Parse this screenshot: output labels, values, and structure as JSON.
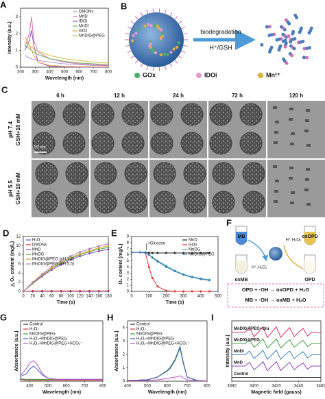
{
  "panel_b": {
    "label": "B",
    "arrow_top": "biodegradation",
    "arrow_bottom": "H⁺/GSH",
    "legend": [
      "GOx",
      "IDOi",
      "Mn²⁺"
    ]
  },
  "panel_c": {
    "label": "C",
    "columns": [
      "6 h",
      "12 h",
      "24 h",
      "72 h",
      "120 h"
    ],
    "rows": [
      [
        "pH 7.4",
        "GSH+10 mM"
      ],
      [
        "pH 5.5",
        "GSH+10 mM"
      ]
    ],
    "scale_bar": "50 nm"
  },
  "panel_f": {
    "label": "F",
    "tubes": [
      "MB",
      "oxOPD",
      "oxMB",
      "OPD"
    ],
    "conditions": [
      "H⁺,H₂O₂",
      "H⁺,H₂O₂"
    ],
    "reactions": [
      "OPD + ·OH → oxOPD + H₂O",
      "MB + ·OH → oxMB + H₂O"
    ]
  },
  "chart_data": [
    {
      "type": "line",
      "label": "A",
      "xlabel": "Wavelength (nm)",
      "ylabel": "Intensity (a.u.)",
      "legend": "upper right",
      "x": [
        230,
        260,
        275,
        290,
        320,
        400,
        500,
        600,
        700,
        800
      ],
      "xlim": [
        200,
        800
      ],
      "xticks": [
        200,
        300,
        400,
        500,
        600,
        700,
        800
      ],
      "ylim": [
        0,
        3.5
      ],
      "yticks": [
        0,
        1,
        2,
        3
      ],
      "series": [
        {
          "name": "DMONs",
          "color": "#a898d8",
          "values": [
            0.7,
            0.55,
            0.5,
            0.45,
            0.4,
            0.3,
            0.2,
            0.15,
            0.1,
            0.08
          ]
        },
        {
          "name": "MnD",
          "color": "#e070b0",
          "values": [
            1.2,
            2.0,
            3.0,
            1.6,
            0.9,
            0.5,
            0.3,
            0.2,
            0.15,
            0.1
          ]
        },
        {
          "name": "IDOi",
          "color": "#9050c0",
          "values": [
            1.0,
            1.6,
            2.2,
            1.3,
            0.3,
            0.05,
            0.02,
            0.01,
            0.01,
            0.01
          ]
        },
        {
          "name": "MnDI",
          "color": "#60b060",
          "values": [
            1.3,
            1.1,
            1.0,
            0.9,
            0.75,
            0.5,
            0.35,
            0.25,
            0.2,
            0.15
          ]
        },
        {
          "name": "GOx",
          "color": "#f0a040",
          "values": [
            1.8,
            1.3,
            1.0,
            0.7,
            0.3,
            0.1,
            0.05,
            0.03,
            0.02,
            0.02
          ]
        },
        {
          "name": "MnDIG@PEG",
          "color": "#d8b830",
          "values": [
            1.5,
            1.3,
            1.2,
            1.1,
            0.95,
            0.7,
            0.5,
            0.4,
            0.3,
            0.25
          ]
        }
      ]
    },
    {
      "type": "line",
      "label": "D",
      "xlabel": "Time (s)",
      "ylabel": "△ O₂ content (mg/L)",
      "legend": "upper left",
      "markers": true,
      "x": [
        0,
        20,
        40,
        60,
        80,
        100,
        120,
        140,
        160,
        180
      ],
      "xlim": [
        0,
        180
      ],
      "xticks": [
        0,
        20,
        40,
        60,
        80,
        100,
        120,
        140,
        160,
        180
      ],
      "ylim": [
        0,
        12
      ],
      "yticks": [
        0,
        2,
        4,
        6,
        8,
        10,
        12
      ],
      "series": [
        {
          "name": "H₂O",
          "color": "#4060d0",
          "values": [
            0,
            0,
            0,
            0,
            0,
            0,
            0,
            0,
            0,
            0
          ]
        },
        {
          "name": "DMONs",
          "color": "#e03030",
          "values": [
            0,
            0.1,
            0.1,
            0.1,
            0.1,
            0.1,
            0.1,
            0.1,
            0.1,
            0.1
          ]
        },
        {
          "name": "MnD",
          "color": "#9040c0",
          "values": [
            0,
            1.7,
            3.3,
            4.7,
            5.9,
            6.9,
            7.7,
            8.3,
            8.8,
            9.2
          ]
        },
        {
          "name": "MnDG",
          "color": "#40b040",
          "values": [
            0,
            1.8,
            3.5,
            5.0,
            6.2,
            7.2,
            8.0,
            8.7,
            9.2,
            9.6
          ]
        },
        {
          "name": "MnDIG@PEG (pH 7.4)",
          "color": "#e0a030",
          "values": [
            0,
            1.9,
            3.6,
            5.1,
            6.4,
            7.4,
            8.2,
            8.9,
            9.5,
            10.0
          ]
        },
        {
          "name": "MnDIG@PEG (pH 5.5)",
          "color": "#b080b0",
          "values": [
            0,
            2.0,
            3.8,
            5.4,
            6.7,
            7.7,
            8.6,
            9.3,
            9.9,
            10.4
          ]
        }
      ]
    },
    {
      "type": "line",
      "label": "E",
      "xlabel": "Time (s)",
      "ylabel": "O₂ content (mg/L)",
      "legend": "upper right",
      "markers": true,
      "annotation": "+Glucose",
      "x": [
        0,
        50,
        80,
        100,
        120,
        150,
        200,
        250,
        300,
        350,
        400,
        450
      ],
      "xlim": [
        0,
        500
      ],
      "xticks": [
        0,
        100,
        200,
        300,
        400,
        500
      ],
      "ylim": [
        0,
        9
      ],
      "yticks": [
        0,
        1,
        2,
        3,
        4,
        5,
        6,
        7,
        8,
        9
      ],
      "series": [
        {
          "name": "MnD",
          "color": "#202020",
          "values": [
            6.4,
            6.4,
            6.4,
            6.3,
            6.3,
            6.3,
            6.3,
            6.3,
            6.3,
            6.3,
            6.3,
            6.3
          ]
        },
        {
          "name": "GOx",
          "color": "#e03030",
          "values": [
            6.4,
            6.4,
            6.3,
            4.0,
            2.2,
            0.8,
            0.1,
            0,
            0,
            0,
            0,
            0
          ]
        },
        {
          "name": "MnDG",
          "color": "#30a0a0",
          "values": [
            6.4,
            6.4,
            6.3,
            6.0,
            5.6,
            5.0,
            4.2,
            3.4,
            2.8,
            2.4,
            2.1,
            1.9
          ]
        },
        {
          "name": "MnDIG@PEG",
          "color": "#4080c0",
          "values": [
            6.4,
            6.4,
            6.3,
            6.0,
            5.5,
            4.9,
            4.0,
            3.3,
            2.7,
            2.3,
            2.0,
            1.8
          ]
        }
      ]
    },
    {
      "type": "line",
      "label": "G",
      "xlabel": "Wavelength (nm)",
      "ylabel": "Absorbance (a.u.)",
      "legend": "upper left",
      "x": [
        350,
        380,
        400,
        420,
        440,
        470,
        500,
        550,
        600,
        700,
        800
      ],
      "xlim": [
        350,
        800
      ],
      "xticks": [
        400,
        500,
        600,
        700,
        800
      ],
      "ylim": [
        0,
        1
      ],
      "series": [
        {
          "name": "Control",
          "color": "#303030",
          "values": [
            0.03,
            0.02,
            0.02,
            0.02,
            0.02,
            0.02,
            0.02,
            0.02,
            0.02,
            0.02,
            0.02
          ]
        },
        {
          "name": "H₂O₂",
          "color": "#e03030",
          "values": [
            0.03,
            0.02,
            0.02,
            0.02,
            0.02,
            0.02,
            0.02,
            0.02,
            0.02,
            0.02,
            0.02
          ]
        },
        {
          "name": "MnDIG@PEG",
          "color": "#40a040",
          "values": [
            0.04,
            0.03,
            0.03,
            0.03,
            0.03,
            0.03,
            0.03,
            0.03,
            0.03,
            0.03,
            0.03
          ]
        },
        {
          "name": "H₂O₂+MnDIG@PEG",
          "color": "#4060d0",
          "values": [
            0.08,
            0.12,
            0.2,
            0.25,
            0.2,
            0.1,
            0.05,
            0.03,
            0.03,
            0.03,
            0.03
          ]
        },
        {
          "name": "H₂O₂+MnDIG@PEG+HCO₃⁻",
          "color": "#c050c0",
          "values": [
            0.1,
            0.2,
            0.3,
            0.34,
            0.28,
            0.12,
            0.05,
            0.03,
            0.03,
            0.03,
            0.03
          ]
        }
      ]
    },
    {
      "type": "line",
      "label": "H",
      "xlabel": "Wavelength (nm)",
      "ylabel": "Absorbance (a.u.)",
      "legend": "upper left",
      "x": [
        400,
        500,
        550,
        600,
        615,
        640,
        664,
        680,
        700,
        750,
        800
      ],
      "xlim": [
        400,
        800
      ],
      "xticks": [
        400,
        500,
        600,
        700,
        800
      ],
      "ylim": [
        0,
        4.5
      ],
      "yticks": [
        0,
        1,
        2,
        3,
        4
      ],
      "series": [
        {
          "name": "Control",
          "color": "#303030",
          "values": [
            0.05,
            0.1,
            0.3,
            0.8,
            1.0,
            1.6,
            2.5,
            1.4,
            0.3,
            0.05,
            0.02
          ]
        },
        {
          "name": "H₂O₂",
          "color": "#e03030",
          "values": [
            0.05,
            0.1,
            0.3,
            0.8,
            1.0,
            1.6,
            2.55,
            1.4,
            0.3,
            0.05,
            0.02
          ]
        },
        {
          "name": "MnDIG@PEG",
          "color": "#40a040",
          "values": [
            0.05,
            0.1,
            0.3,
            0.75,
            0.95,
            1.55,
            2.45,
            1.35,
            0.3,
            0.05,
            0.02
          ]
        },
        {
          "name": "H₂O₂+MnDIG@PEG",
          "color": "#4060d0",
          "values": [
            0.05,
            0.1,
            0.3,
            0.8,
            1.05,
            1.65,
            2.6,
            1.45,
            0.3,
            0.05,
            0.02
          ]
        },
        {
          "name": "H₂O₂+MnDIG@PEG+HCO₃⁻",
          "color": "#c050c0",
          "values": [
            0.05,
            0.05,
            0.1,
            0.2,
            0.25,
            0.3,
            0.4,
            0.25,
            0.1,
            0.03,
            0.02
          ]
        }
      ]
    },
    {
      "type": "line",
      "label": "I",
      "xlabel": "Magnetic field (gauss)",
      "ylabel": "Intensity (a.u.)",
      "legend": "inline",
      "x": [
        3380,
        3384,
        3388,
        3392,
        3396,
        3400,
        3404,
        3408,
        3412,
        3416,
        3420,
        3424,
        3428,
        3432,
        3436,
        3440,
        3444,
        3448,
        3452,
        3456,
        3460
      ],
      "xlim": [
        3380,
        3460
      ],
      "xticks": [
        3380,
        3400,
        3420,
        3440,
        3460
      ],
      "ylim": [
        0,
        8
      ],
      "series": [
        {
          "name": "MnDIG@PEG+Glu",
          "color": "#e03060",
          "values": [
            6.5,
            6.5,
            6.5,
            6.5,
            7.1,
            5.9,
            6.5,
            7.2,
            5.8,
            6.5,
            7.2,
            5.8,
            6.5,
            7.1,
            5.9,
            6.5,
            7.0,
            6.0,
            6.5,
            6.5,
            6.5
          ]
        },
        {
          "name": "MnDIG@PEG",
          "color": "#40a040",
          "values": [
            5,
            5,
            5,
            5,
            5.5,
            4.5,
            5,
            5.6,
            4.4,
            5,
            5.6,
            4.4,
            5,
            5.5,
            4.5,
            5,
            5.4,
            4.6,
            5,
            5,
            5
          ]
        },
        {
          "name": "MnDI",
          "color": "#4080c0",
          "values": [
            3.5,
            3.5,
            3.5,
            3.5,
            4.0,
            3.0,
            3.5,
            4.1,
            2.9,
            3.5,
            4.1,
            2.9,
            3.5,
            4.0,
            3.0,
            3.5,
            3.9,
            3.1,
            3.5,
            3.5,
            3.5
          ]
        },
        {
          "name": "MnD",
          "color": "#9040c0",
          "values": [
            2,
            2,
            2,
            2,
            2.5,
            1.5,
            2,
            2.6,
            1.4,
            2,
            2.6,
            1.4,
            2,
            2.5,
            1.5,
            2,
            2.4,
            1.6,
            2,
            2,
            2
          ]
        },
        {
          "name": "Control",
          "color": "#303030",
          "values": [
            0.5,
            0.5,
            0.5,
            0.5,
            0.5,
            0.5,
            0.5,
            0.5,
            0.5,
            0.5,
            0.5,
            0.5,
            0.5,
            0.5,
            0.5,
            0.5,
            0.5,
            0.5,
            0.5,
            0.5,
            0.5
          ]
        }
      ]
    }
  ]
}
